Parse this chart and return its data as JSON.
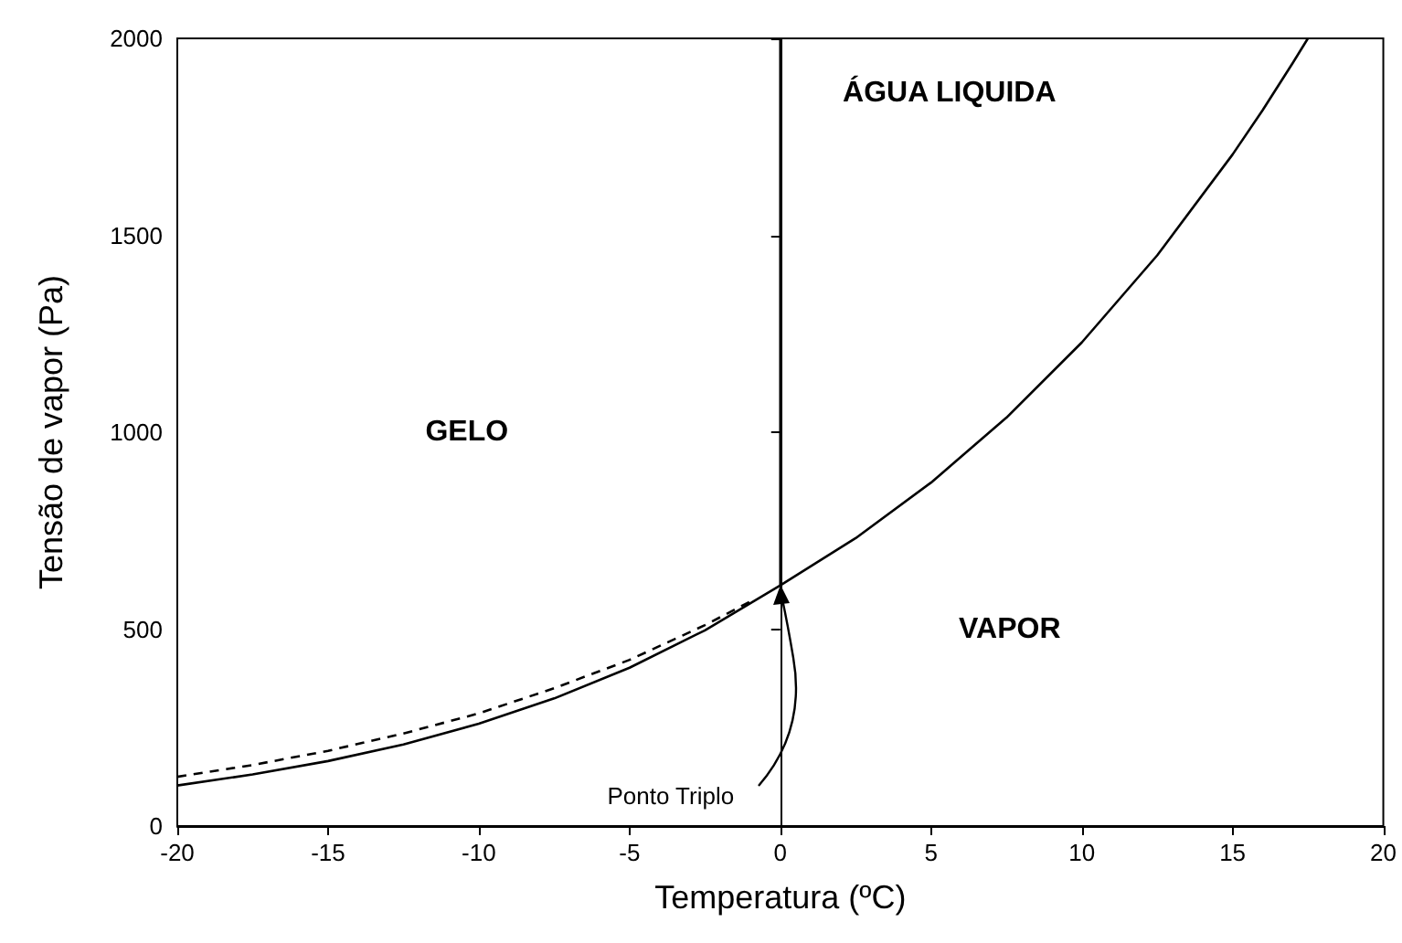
{
  "chart_data": {
    "type": "line",
    "xlabel": "Temperatura (ºC)",
    "ylabel": "Tensão de vapor (Pa)",
    "xlim": [
      -20,
      20
    ],
    "ylim": [
      0,
      2000
    ],
    "xticks": [
      -20,
      -15,
      -10,
      -5,
      0,
      5,
      10,
      15,
      20
    ],
    "yticks": [
      0,
      500,
      1000,
      1500,
      2000
    ],
    "marker": "none",
    "series": [
      {
        "color": "#000000",
        "line_style": "solid",
        "x": [
          -20,
          -17.5,
          -15,
          -12.5,
          -10,
          -7.5,
          -5,
          -2.5,
          0,
          2.5,
          5,
          7.5,
          10,
          12.5,
          15,
          16,
          17,
          17.5
        ],
        "values": [
          103,
          131,
          165,
          207,
          260,
          324,
          402,
          497,
          611,
          731,
          872,
          1037,
          1228,
          1449,
          1705,
          1818,
          1938,
          2000
        ]
      },
      {
        "color": "#000000",
        "line_style": "dashed",
        "x": [
          -20,
          -17.5,
          -15,
          -12.5,
          -10,
          -7.5,
          -5,
          -2.5,
          -1
        ],
        "values": [
          125,
          155,
          191,
          235,
          286,
          350,
          422,
          510,
          570
        ]
      },
      {
        "color": "#000000",
        "line_style": "solid",
        "x": [
          0,
          0
        ],
        "values": [
          611,
          2000
        ]
      }
    ],
    "annotations": [
      "GELO",
      "ÁGUA LIQUIDA",
      "VAPOR",
      {
        "text": "Ponto Triplo",
        "x": 0,
        "y": 611
      }
    ]
  }
}
